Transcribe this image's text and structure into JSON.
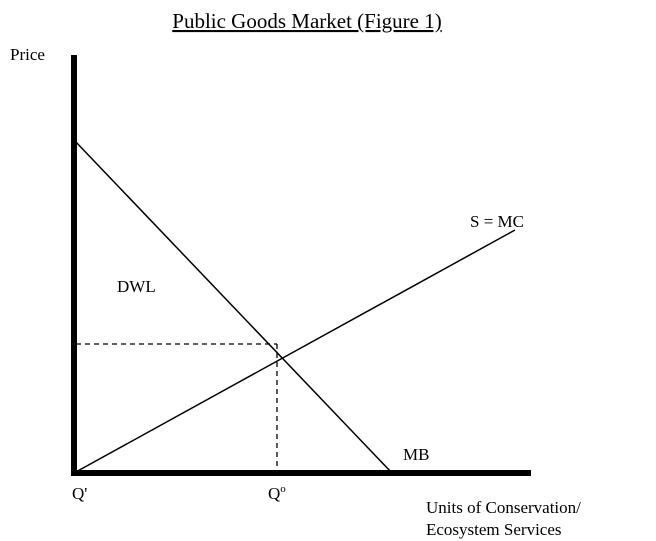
{
  "title": "Public Goods Market (Figure 1)",
  "y_axis_label": "Price",
  "x_axis_label": [
    "Units of Conservation/",
    "Ecosystem Services"
  ],
  "curves": {
    "supply": "S = MC",
    "benefit": "MB"
  },
  "area_label": "DWL",
  "x_points": {
    "origin": "Q'",
    "optimum": {
      "text": "Q",
      "superscript": "o"
    }
  }
}
